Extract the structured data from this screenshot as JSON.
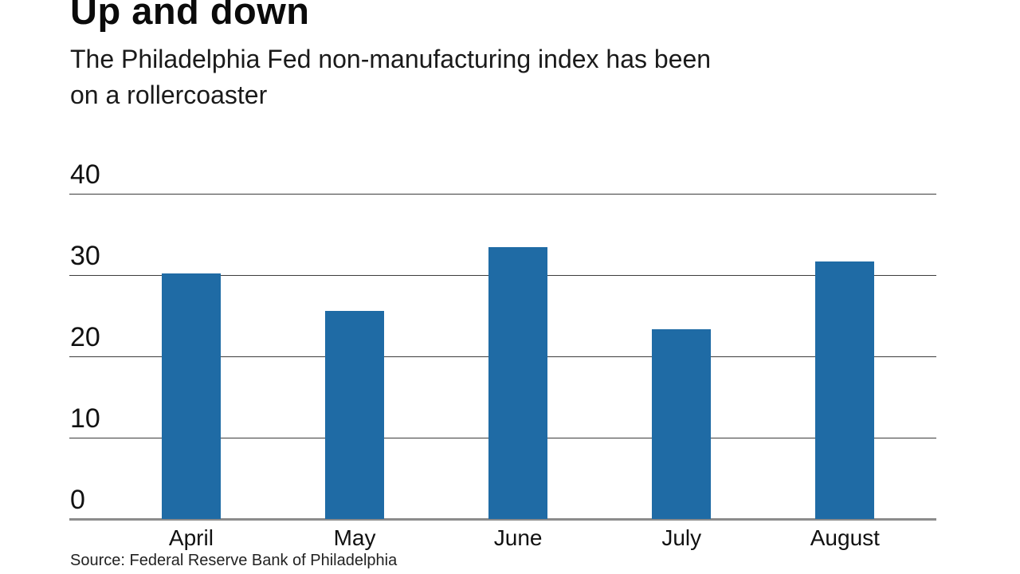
{
  "header": {
    "title": "Up and down",
    "subtitle_line1": "The Philadelphia Fed non-manufacturing index has been",
    "subtitle_line2": "on a rollercoaster"
  },
  "source_note": "Source: Federal Reserve Bank of Philadelphia",
  "colors": {
    "bar": "#1f6ba5",
    "gridline": "#3c3c3c",
    "baseline": "#8c8c8c",
    "text": "#111111",
    "background": "#ffffff"
  },
  "chart_data": {
    "type": "bar",
    "title": "Up and down",
    "subtitle": "The Philadelphia Fed non-manufacturing index has been on a rollercoaster",
    "categories": [
      "April",
      "May",
      "June",
      "July",
      "August"
    ],
    "values": [
      30.2,
      25.6,
      33.4,
      23.3,
      31.7
    ],
    "xlabel": "",
    "ylabel": "",
    "ylim": [
      0,
      40
    ],
    "yticks": [
      0,
      10,
      20,
      30,
      40
    ],
    "grid": true,
    "legend": false,
    "bar_color": "#1f6ba5",
    "source": "Source: Federal Reserve Bank of Philadelphia"
  }
}
